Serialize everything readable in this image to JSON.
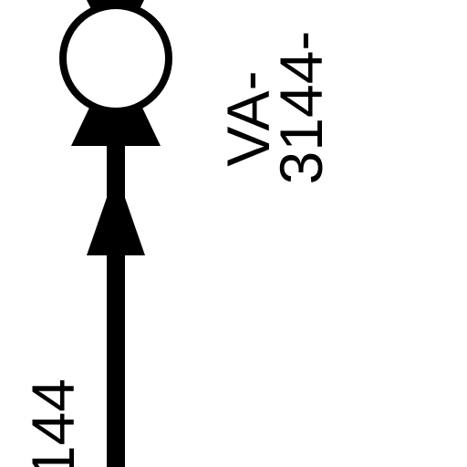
{
  "labels": {
    "valve_code_line1": "VA-",
    "valve_code_line2": "3144-",
    "pipe_code": "144"
  },
  "colors": {
    "ink": "#000000",
    "paper": "#ffffff"
  },
  "icons": {
    "valve_symbol": "valve-icon",
    "flow_arrow": "arrow-up-icon"
  }
}
